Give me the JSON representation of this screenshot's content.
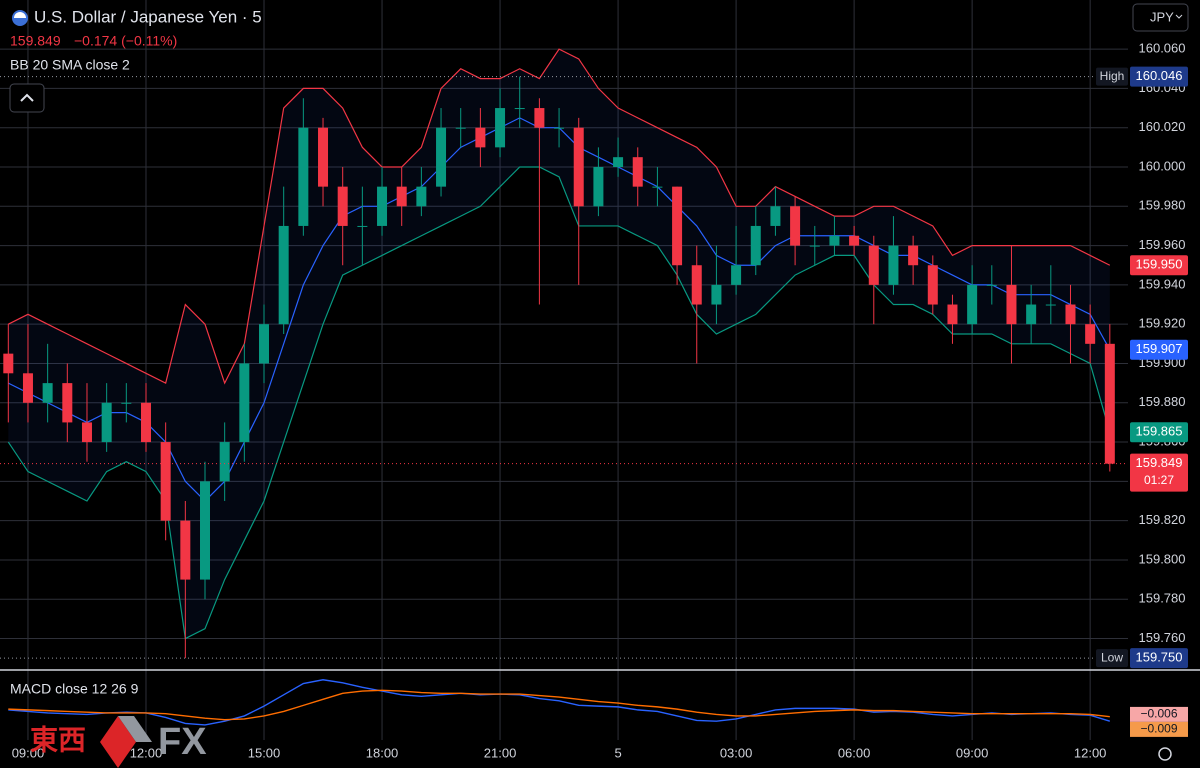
{
  "header": {
    "symbol_title": "U.S. Dollar / Japanese Yen · 5",
    "last_price": "159.849",
    "change": "−0.174 (−0.11%)",
    "indicator": "BB 20 SMA close 2",
    "currency": "JPY"
  },
  "chart_data": {
    "type": "candlestick",
    "x": [
      "08:30",
      "09:00",
      "09:30",
      "10:00",
      "10:30",
      "11:00",
      "11:30",
      "12:00",
      "12:30",
      "13:00",
      "13:30",
      "14:00",
      "14:30",
      "15:00",
      "15:30",
      "16:00",
      "16:30",
      "17:00",
      "17:30",
      "18:00",
      "18:30",
      "19:00",
      "19:30",
      "20:00",
      "20:30",
      "21:00",
      "21:30",
      "22:00",
      "22:30",
      "23:00",
      "23:30",
      "00:00",
      "00:30",
      "01:00",
      "01:30",
      "02:00",
      "02:30",
      "03:00",
      "03:30",
      "04:00",
      "04:30",
      "05:00",
      "05:30",
      "06:00",
      "06:30",
      "07:00",
      "07:30",
      "08:00",
      "08:30",
      "09:00",
      "09:30",
      "10:00",
      "10:30",
      "11:00",
      "11:30",
      "12:00",
      "12:30"
    ],
    "open": [
      159.905,
      159.895,
      159.88,
      159.89,
      159.87,
      159.86,
      159.88,
      159.88,
      159.86,
      159.82,
      159.79,
      159.84,
      159.86,
      159.9,
      159.92,
      159.97,
      160.02,
      159.99,
      159.97,
      159.97,
      159.99,
      159.98,
      159.99,
      160.02,
      160.02,
      160.01,
      160.03,
      160.03,
      160.02,
      160.02,
      159.98,
      160.0,
      160.005,
      159.99,
      159.99,
      159.95,
      159.93,
      159.94,
      159.95,
      159.97,
      159.98,
      159.96,
      159.96,
      159.965,
      159.96,
      159.94,
      159.96,
      159.95,
      159.93,
      159.92,
      159.94,
      159.94,
      159.92,
      159.93,
      159.93,
      159.92,
      159.91
    ],
    "high": [
      159.92,
      159.92,
      159.91,
      159.9,
      159.89,
      159.89,
      159.89,
      159.89,
      159.87,
      159.83,
      159.85,
      159.87,
      159.91,
      159.93,
      159.99,
      160.035,
      160.025,
      160.0,
      159.99,
      160.0,
      160.0,
      160.0,
      160.03,
      160.03,
      160.03,
      160.04,
      160.046,
      160.035,
      160.03,
      160.025,
      160.01,
      160.015,
      160.01,
      160.0,
      159.99,
      159.96,
      159.96,
      159.97,
      159.98,
      159.99,
      159.985,
      159.97,
      159.975,
      159.97,
      159.965,
      159.975,
      159.965,
      159.955,
      159.935,
      159.95,
      159.95,
      159.96,
      159.94,
      159.95,
      159.94,
      159.93,
      159.92
    ],
    "low": [
      159.87,
      159.87,
      159.87,
      159.86,
      159.85,
      159.855,
      159.87,
      159.855,
      159.81,
      159.75,
      159.78,
      159.83,
      159.85,
      159.89,
      159.915,
      159.965,
      159.98,
      159.95,
      159.95,
      159.965,
      159.97,
      159.975,
      159.985,
      160.01,
      160.0,
      160.005,
      160.02,
      159.93,
      160.01,
      159.94,
      159.975,
      159.995,
      159.98,
      159.98,
      159.94,
      159.9,
      159.92,
      159.935,
      159.945,
      159.965,
      159.95,
      159.95,
      159.955,
      159.955,
      159.92,
      159.935,
      159.94,
      159.925,
      159.91,
      159.915,
      159.93,
      159.9,
      159.91,
      159.92,
      159.9,
      159.9,
      159.845
    ],
    "close": [
      159.895,
      159.88,
      159.89,
      159.87,
      159.86,
      159.88,
      159.88,
      159.86,
      159.82,
      159.79,
      159.84,
      159.86,
      159.9,
      159.92,
      159.97,
      160.02,
      159.99,
      159.97,
      159.97,
      159.99,
      159.98,
      159.99,
      160.02,
      160.02,
      160.01,
      160.03,
      160.03,
      160.02,
      160.02,
      159.98,
      160.0,
      160.005,
      159.99,
      159.99,
      159.95,
      159.93,
      159.94,
      159.95,
      159.97,
      159.98,
      159.96,
      159.96,
      159.965,
      159.96,
      159.94,
      159.96,
      159.95,
      159.93,
      159.92,
      159.94,
      159.94,
      159.92,
      159.93,
      159.93,
      159.92,
      159.91,
      159.849
    ],
    "up_color": "#089981",
    "down_color": "#f23645",
    "bollinger": {
      "upper": [
        159.92,
        159.925,
        159.92,
        159.915,
        159.91,
        159.905,
        159.9,
        159.895,
        159.89,
        159.93,
        159.92,
        159.89,
        159.91,
        159.97,
        160.03,
        160.04,
        160.04,
        160.03,
        160.01,
        160.0,
        160.0,
        160.01,
        160.04,
        160.05,
        160.045,
        160.045,
        160.05,
        160.045,
        160.06,
        160.055,
        160.04,
        160.03,
        160.025,
        160.02,
        160.015,
        160.01,
        160.0,
        159.98,
        159.98,
        159.99,
        159.985,
        159.98,
        159.975,
        159.975,
        159.98,
        159.98,
        159.975,
        159.97,
        159.955,
        159.96,
        159.96,
        159.96,
        159.96,
        159.96,
        159.96,
        159.955,
        159.95
      ],
      "basis": [
        159.89,
        159.885,
        159.88,
        159.875,
        159.87,
        159.875,
        159.875,
        159.87,
        159.86,
        159.84,
        159.83,
        159.84,
        159.86,
        159.88,
        159.91,
        159.94,
        159.96,
        159.975,
        159.98,
        159.98,
        159.985,
        159.99,
        160.0,
        160.01,
        160.015,
        160.02,
        160.025,
        160.02,
        160.02,
        160.01,
        160.005,
        160.0,
        159.995,
        159.99,
        159.98,
        159.97,
        159.955,
        159.95,
        159.95,
        159.96,
        159.965,
        159.965,
        159.965,
        159.965,
        159.96,
        159.955,
        159.955,
        159.95,
        159.945,
        159.94,
        159.94,
        159.935,
        159.935,
        159.935,
        159.93,
        159.925,
        159.907
      ],
      "lower": [
        159.86,
        159.845,
        159.84,
        159.835,
        159.83,
        159.845,
        159.85,
        159.845,
        159.83,
        159.76,
        159.765,
        159.79,
        159.81,
        159.83,
        159.86,
        159.89,
        159.92,
        159.945,
        159.95,
        159.955,
        159.96,
        159.965,
        159.97,
        159.975,
        159.98,
        159.99,
        160.0,
        160.0,
        159.995,
        159.97,
        159.97,
        159.97,
        159.965,
        159.96,
        159.945,
        159.925,
        159.915,
        159.92,
        159.925,
        159.935,
        159.945,
        159.95,
        159.955,
        159.955,
        159.94,
        159.93,
        159.93,
        159.925,
        159.915,
        159.915,
        159.915,
        159.91,
        159.91,
        159.91,
        159.905,
        159.9,
        159.865
      ],
      "upper_color": "#f23645",
      "basis_color": "#2962ff",
      "lower_color": "#089981"
    },
    "ylim": [
      159.745,
      160.085
    ],
    "yticks": [
      {
        "value": 160.06,
        "label": "160.060"
      },
      {
        "value": 160.04,
        "label": "160.040"
      },
      {
        "value": 160.02,
        "label": "160.020"
      },
      {
        "value": 160.0,
        "label": "160.000"
      },
      {
        "value": 159.98,
        "label": "159.980"
      },
      {
        "value": 159.96,
        "label": "159.960"
      },
      {
        "value": 159.94,
        "label": "159.940"
      },
      {
        "value": 159.92,
        "label": "159.920"
      },
      {
        "value": 159.9,
        "label": "159.900"
      },
      {
        "value": 159.88,
        "label": "159.880"
      },
      {
        "value": 159.86,
        "label": "159.860"
      },
      {
        "value": 159.84,
        "label": "159.840"
      },
      {
        "value": 159.82,
        "label": "159.820"
      },
      {
        "value": 159.8,
        "label": "159.800"
      },
      {
        "value": 159.78,
        "label": "159.780"
      },
      {
        "value": 159.76,
        "label": "159.760"
      }
    ],
    "xticks": [
      "09:00",
      "12:00",
      "15:00",
      "18:00",
      "21:00",
      {
        "value": "00:00",
        "label": "5"
      },
      "03:00",
      "06:00",
      "09:00",
      "12:00"
    ],
    "grid": true,
    "price_markers": {
      "high": {
        "name": "High",
        "value": 160.046,
        "label": "160.046",
        "color": "#1e3a8a"
      },
      "upper_band": {
        "value": 159.95,
        "label": "159.950",
        "color": "#f23645"
      },
      "basis": {
        "value": 159.907,
        "label": "159.907",
        "color": "#2962ff"
      },
      "lower_band": {
        "value": 159.865,
        "label": "159.865",
        "color": "#089981"
      },
      "last": {
        "value": 159.849,
        "label": "159.849",
        "countdown": "01:27",
        "color": "#f23645"
      },
      "low": {
        "name": "Low",
        "value": 159.75,
        "label": "159.750",
        "color": "#1e3a8a"
      }
    },
    "macd": {
      "title": "MACD close 12 26 9",
      "macd": [
        0.0,
        -0.002,
        -0.004,
        -0.005,
        -0.006,
        -0.004,
        -0.003,
        -0.004,
        -0.01,
        -0.018,
        -0.02,
        -0.015,
        -0.008,
        0.005,
        0.02,
        0.035,
        0.04,
        0.036,
        0.03,
        0.025,
        0.02,
        0.018,
        0.02,
        0.022,
        0.02,
        0.021,
        0.02,
        0.015,
        0.012,
        0.006,
        0.005,
        0.004,
        0.0,
        -0.002,
        -0.008,
        -0.014,
        -0.015,
        -0.012,
        -0.006,
        0.0,
        0.002,
        0.002,
        0.002,
        0.001,
        -0.003,
        -0.002,
        -0.003,
        -0.006,
        -0.008,
        -0.006,
        -0.004,
        -0.006,
        -0.005,
        -0.004,
        -0.006,
        -0.007,
        -0.015
      ],
      "signal": [
        0.001,
        0.0,
        -0.001,
        -0.002,
        -0.003,
        -0.004,
        -0.004,
        -0.004,
        -0.005,
        -0.008,
        -0.011,
        -0.013,
        -0.012,
        -0.008,
        -0.002,
        0.006,
        0.014,
        0.022,
        0.025,
        0.026,
        0.025,
        0.023,
        0.022,
        0.022,
        0.021,
        0.021,
        0.021,
        0.019,
        0.017,
        0.014,
        0.011,
        0.009,
        0.006,
        0.004,
        0.001,
        -0.003,
        -0.006,
        -0.008,
        -0.008,
        -0.006,
        -0.004,
        -0.002,
        -0.001,
        0.0,
        -0.001,
        -0.001,
        -0.002,
        -0.003,
        -0.004,
        -0.005,
        -0.005,
        -0.005,
        -0.005,
        -0.005,
        -0.005,
        -0.006,
        -0.009
      ],
      "macd_color": "#2962ff",
      "signal_color": "#ff6d00",
      "ylim": [
        -0.04,
        0.045
      ],
      "labels": [
        {
          "value": -0.006,
          "label": "−0.006",
          "color": "#f7a7a7"
        },
        {
          "value": -0.009,
          "label": "−0.009",
          "color": "#f59a4a"
        }
      ]
    }
  },
  "watermark": {
    "cjk": "東西",
    "latin": "FX"
  }
}
